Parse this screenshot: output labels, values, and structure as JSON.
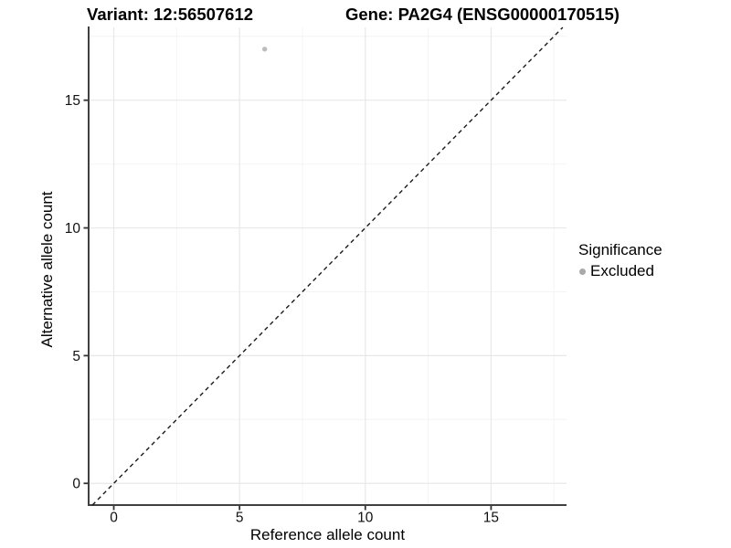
{
  "page": {
    "background": "#ffffff"
  },
  "chart_data": {
    "type": "scatter",
    "titles": {
      "left": "Variant: 12:56507612",
      "right": "Gene: PA2G4 (ENSG00000170515)"
    },
    "xlabel": "Reference allele count",
    "ylabel": "Alternative allele count",
    "x_ticks": [
      0,
      5,
      10,
      15
    ],
    "y_ticks": [
      0,
      5,
      10,
      15
    ],
    "x_minor_ticks": [
      2.5,
      7.5,
      12.5,
      17.5
    ],
    "y_minor_ticks": [
      2.5,
      7.5,
      12.5,
      17.5
    ],
    "xlim": [
      -1.0,
      18.0
    ],
    "ylim": [
      -0.85,
      17.85
    ],
    "grid": "major-and-minor",
    "legend": {
      "title": "Significance",
      "position": "right",
      "entries": [
        {
          "label": "Excluded",
          "color": "#a9a9a9"
        }
      ]
    },
    "series": [
      {
        "name": "Excluded",
        "color": "#bdbdbd",
        "points": [
          {
            "x": 6,
            "y": 17
          }
        ]
      }
    ],
    "reference_line": {
      "kind": "identity",
      "slope": 1,
      "intercept": 0,
      "linetype": "dashed",
      "color": "#1a1a1a"
    },
    "style": {
      "axis_line_color": "#404040",
      "tick_color": "#333333",
      "tick_label_color": "#111111",
      "grid_major_color": "#e8e8e8",
      "grid_minor_color": "#f4f4f4",
      "panel_background": "#ffffff"
    }
  }
}
